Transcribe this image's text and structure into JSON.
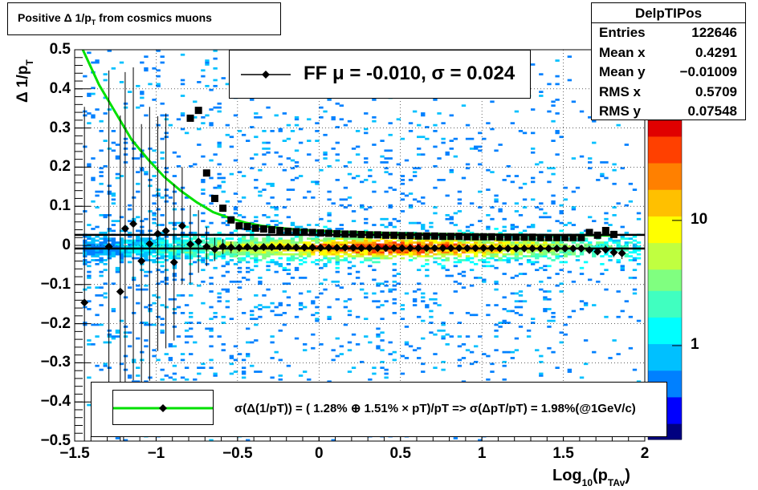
{
  "title": {
    "pre": "Positive Δ 1/p",
    "sub": "T",
    "post": " from cosmics muons"
  },
  "stats": {
    "name": "DelpTIPos",
    "rows": [
      {
        "label": "Entries",
        "value": "122646"
      },
      {
        "label": "Mean x",
        "value": "0.4291"
      },
      {
        "label": "Mean y",
        "value": "−0.01009"
      },
      {
        "label": "RMS x",
        "value": "0.5709"
      },
      {
        "label": "RMS y",
        "value": "0.07548"
      }
    ]
  },
  "fit_text": "FF μ = -0.010, σ =   0.024",
  "legend_text": "σ(Δ(1/pT)) = ( 1.28% ⊕  1.51% × pT)/pT => σ(ΔpT/pT) =  1.98%(@1GeV/c)",
  "axis_labels": {
    "y_pre": "Δ 1/p",
    "y_sub": "T",
    "x_pre": "Log",
    "x_sub1": "10",
    "x_mid": "(p",
    "x_sub2": "TAv",
    "x_post": ")"
  },
  "colors": {
    "fit_line": "#00e000",
    "marker": "#000000",
    "palette": [
      "#000080",
      "#0000ff",
      "#0080ff",
      "#00c0ff",
      "#00ffff",
      "#40ffc0",
      "#80ff80",
      "#c0ff40",
      "#ffff00",
      "#ffc000",
      "#ff8000",
      "#ff4000",
      "#e00000"
    ]
  },
  "chart_data": {
    "type": "scatter",
    "xlim": [
      -1.5,
      2
    ],
    "ylim": [
      -0.5,
      0.5
    ],
    "x_ticks": [
      -1.5,
      -1,
      -0.5,
      0,
      0.5,
      1,
      1.5,
      2
    ],
    "x_tick_labels": [
      "−1.5",
      "−1",
      "−0.5",
      "0",
      "0.5",
      "1",
      "1.5",
      "2"
    ],
    "y_ticks": [
      -0.5,
      -0.4,
      -0.3,
      -0.2,
      -0.1,
      0,
      0.1,
      0.2,
      0.3,
      0.4,
      0.5
    ],
    "y_tick_labels": [
      "−0.5",
      "−0.4",
      "−0.3",
      "−0.2",
      "−0.1",
      "0",
      "0.1",
      "0.2",
      "0.3",
      "0.4",
      "0.5"
    ],
    "colorbar": {
      "scale": "log",
      "tick_labels": [
        "1",
        "10"
      ],
      "tick_values": [
        1,
        10
      ]
    },
    "grid": true,
    "series": [
      {
        "marker": "diamond",
        "x": [
          -1.44,
          -1.29,
          -1.22,
          -1.19,
          -1.14,
          -1.09,
          -1.04,
          -0.99,
          -0.94,
          -0.89,
          -0.84,
          -0.79,
          -0.74,
          -0.69,
          -0.64,
          -0.59,
          -0.54,
          -0.49,
          -0.44,
          -0.39,
          -0.34,
          -0.29,
          -0.24,
          -0.19,
          -0.14,
          -0.09,
          -0.04,
          0.01,
          0.06,
          0.11,
          0.16,
          0.21,
          0.26,
          0.31,
          0.36,
          0.41,
          0.46,
          0.51,
          0.56,
          0.61,
          0.66,
          0.71,
          0.76,
          0.81,
          0.86,
          0.91,
          0.96,
          1.01,
          1.06,
          1.11,
          1.16,
          1.21,
          1.26,
          1.31,
          1.36,
          1.41,
          1.46,
          1.51,
          1.56,
          1.61,
          1.66,
          1.71,
          1.76,
          1.81,
          1.86
        ],
        "y": [
          -0.146,
          -0.003,
          -0.118,
          0.043,
          0.055,
          -0.04,
          0.004,
          0.03,
          0.037,
          -0.043,
          0.05,
          0.003,
          0.01,
          -0.003,
          -0.01,
          -0.003,
          -0.005,
          -0.006,
          -0.004,
          -0.007,
          -0.004,
          -0.004,
          -0.004,
          -0.004,
          -0.005,
          -0.005,
          -0.005,
          -0.006,
          -0.006,
          -0.006,
          -0.006,
          -0.006,
          -0.007,
          -0.007,
          -0.007,
          -0.007,
          -0.007,
          -0.007,
          -0.007,
          -0.007,
          -0.007,
          -0.007,
          -0.007,
          -0.007,
          -0.007,
          -0.007,
          -0.007,
          -0.007,
          -0.007,
          -0.008,
          -0.008,
          -0.008,
          -0.008,
          -0.008,
          -0.008,
          -0.008,
          -0.008,
          -0.008,
          -0.008,
          -0.008,
          -0.012,
          -0.016,
          -0.011,
          -0.018,
          -0.02
        ],
        "yerr": [
          0.5,
          0.45,
          0.45,
          0.4,
          0.4,
          0.35,
          0.35,
          0.3,
          0.3,
          0.2,
          0.15,
          0.1,
          0.08,
          0.05,
          0.03,
          0.02,
          0.015,
          0.01,
          0.008,
          0.006,
          0.005,
          0.004,
          0.004,
          0.003,
          0.003,
          0.003,
          0.003,
          0.003,
          0.003,
          0.003,
          0.003,
          0.003,
          0.003,
          0.003,
          0.003,
          0.003,
          0.003,
          0.003,
          0.003,
          0.003,
          0.003,
          0.003,
          0.003,
          0.003,
          0.003,
          0.003,
          0.003,
          0.003,
          0.003,
          0.003,
          0.003,
          0.003,
          0.004,
          0.004,
          0.004,
          0.004,
          0.005,
          0.005,
          0.006,
          0.006,
          0.007,
          0.008,
          0.01,
          0.012,
          0.015
        ]
      },
      {
        "marker": "square",
        "x": [
          -0.79,
          -0.74,
          -0.69,
          -0.64,
          -0.59,
          -0.54,
          -0.49,
          -0.44,
          -0.39,
          -0.34,
          -0.29,
          -0.24,
          -0.19,
          -0.14,
          -0.09,
          -0.04,
          0.01,
          0.06,
          0.11,
          0.16,
          0.21,
          0.26,
          0.31,
          0.36,
          0.41,
          0.46,
          0.51,
          0.56,
          0.61,
          0.66,
          0.71,
          0.76,
          0.81,
          0.86,
          0.91,
          0.96,
          1.01,
          1.06,
          1.11,
          1.16,
          1.21,
          1.26,
          1.31,
          1.36,
          1.41,
          1.46,
          1.51,
          1.56,
          1.61,
          1.66,
          1.71,
          1.76,
          1.81
        ],
        "y": [
          0.325,
          0.345,
          0.185,
          0.12,
          0.095,
          0.065,
          0.05,
          0.048,
          0.044,
          0.042,
          0.04,
          0.038,
          0.036,
          0.035,
          0.034,
          0.033,
          0.032,
          0.031,
          0.03,
          0.029,
          0.029,
          0.028,
          0.027,
          0.027,
          0.026,
          0.026,
          0.025,
          0.025,
          0.024,
          0.024,
          0.024,
          0.023,
          0.023,
          0.023,
          0.022,
          0.022,
          0.022,
          0.022,
          0.021,
          0.021,
          0.021,
          0.021,
          0.021,
          0.02,
          0.02,
          0.02,
          0.02,
          0.02,
          0.02,
          0.033,
          0.026,
          0.038,
          0.028
        ]
      }
    ],
    "fit_curve": {
      "x": [
        -1.45,
        -1.35,
        -1.25,
        -1.15,
        -1.05,
        -0.95,
        -0.85,
        -0.75,
        -0.65,
        -0.55,
        -0.45,
        -0.35,
        -0.25,
        -0.15,
        -0.05,
        0.05,
        0.2,
        0.4,
        0.6,
        0.8,
        1.0,
        1.2,
        1.4,
        1.6,
        1.8
      ],
      "y": [
        0.5,
        0.41,
        0.34,
        0.27,
        0.22,
        0.175,
        0.14,
        0.11,
        0.085,
        0.07,
        0.058,
        0.05,
        0.045,
        0.041,
        0.038,
        0.036,
        0.034,
        0.032,
        0.03,
        0.029,
        0.028,
        0.027,
        0.026,
        0.026,
        0.025
      ]
    },
    "reference_lines": [
      0.027,
      -0.008
    ]
  }
}
